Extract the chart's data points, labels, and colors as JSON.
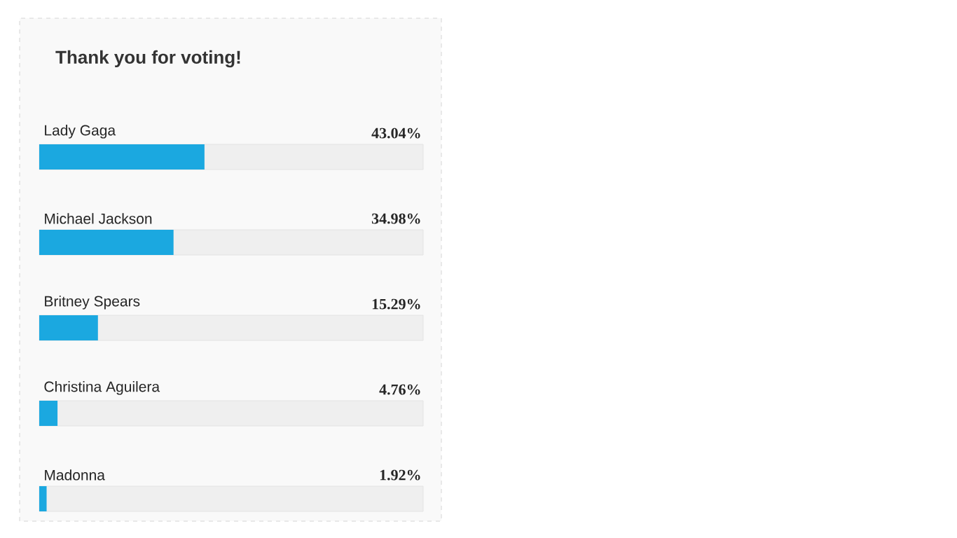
{
  "chart_data": {
    "type": "bar",
    "orientation": "horizontal",
    "title": "Thank you for voting!",
    "categories": [
      "Lady Gaga",
      "Michael Jackson",
      "Britney Spears",
      "Christina Aguilera",
      "Madonna"
    ],
    "values": [
      43.04,
      34.98,
      15.29,
      4.76,
      1.92
    ],
    "value_labels": [
      "43.04%",
      "34.98%",
      "15.29%",
      "4.76%",
      "1.92%"
    ],
    "color": "#1ba8e0",
    "xlim": [
      0,
      100
    ]
  }
}
